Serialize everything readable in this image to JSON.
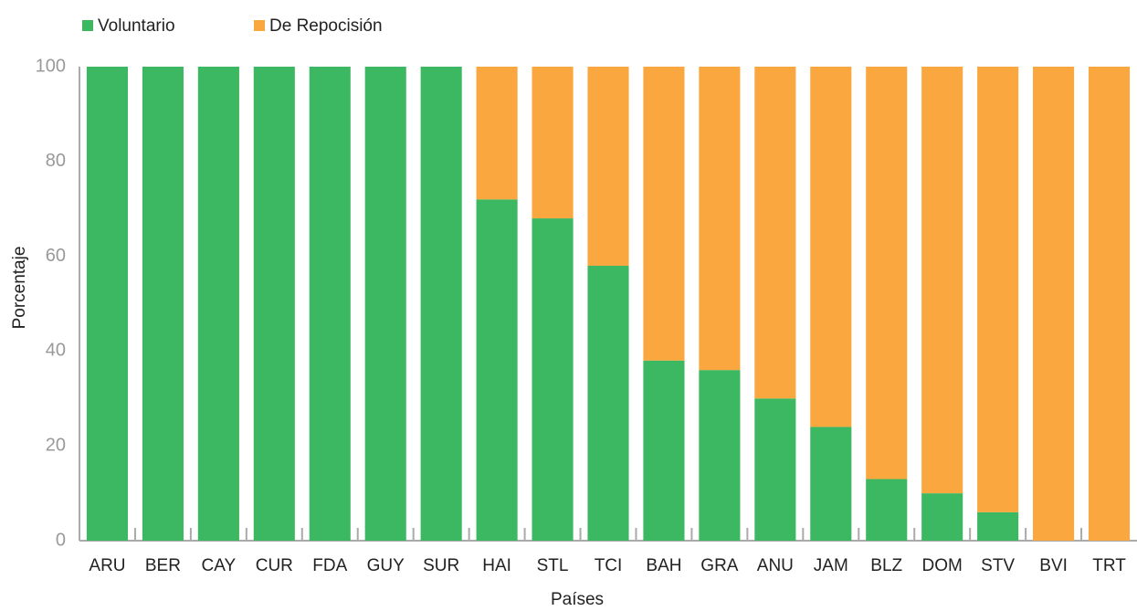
{
  "chart_data": {
    "type": "stacked_bar",
    "x_label": "Países",
    "y_label": "Porcentaje",
    "categories": [
      "ARU",
      "BER",
      "CAY",
      "CUR",
      "FDA",
      "GUY",
      "SUR",
      "HAI",
      "STL",
      "TCI",
      "BAH",
      "GRA",
      "ANU",
      "JAM",
      "BLZ",
      "DOM",
      "STV",
      "BVI",
      "TRT"
    ],
    "series": [
      {
        "name": "Voluntario",
        "color": "#3cb862",
        "values": [
          100,
          100,
          100,
          100,
          100,
          100,
          100,
          72,
          68,
          58,
          38,
          36,
          30,
          24,
          13,
          10,
          6,
          0,
          0
        ]
      },
      {
        "name": "De Repocisión",
        "color": "#f9a73e",
        "values": [
          0,
          0,
          0,
          0,
          0,
          0,
          0,
          28,
          32,
          42,
          62,
          64,
          70,
          76,
          87,
          90,
          94,
          100,
          100
        ]
      }
    ],
    "ylim": [
      0,
      100
    ],
    "yticks": [
      0,
      20,
      40,
      60,
      80,
      100
    ],
    "grid": false,
    "legend": "top-left"
  }
}
